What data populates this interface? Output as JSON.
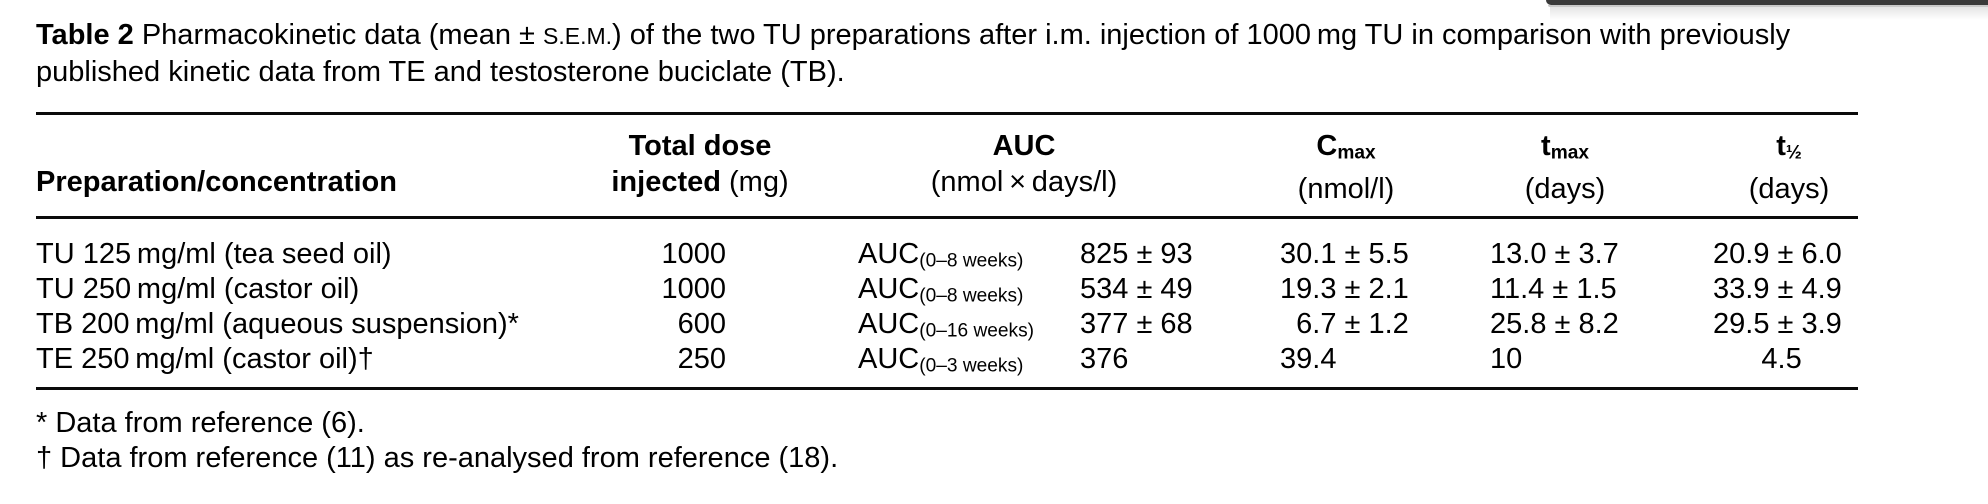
{
  "page": {
    "background": "#ffffff",
    "text_color": "#000000",
    "window_corner_color": "#3a3a3a"
  },
  "caption": {
    "label": "Table 2",
    "line1_a": " Pharmacokinetic data (mean ± ",
    "sem": "S.E.M.",
    "line1_b": ") of the two TU preparations after i.m. injection of 1000 mg TU in comparison with previously",
    "line2": "published kinetic data from TE and testosterone buciclate (TB)."
  },
  "table": {
    "headers": {
      "col1": "Preparation/concentration",
      "col2_line1": "Total dose",
      "col2_line2_bold": "injected",
      "col2_line2_unit": " (mg)",
      "col3_line1": "AUC",
      "col3_line2": "(nmol × days/l)",
      "col4_base": "C",
      "col4_sub": "max",
      "col4_unit": "(nmol/l)",
      "col5_base": "t",
      "col5_sub": "max",
      "col5_unit": "(days)",
      "col6_base": "t",
      "col6_sub": "½",
      "col6_unit": "(days)"
    },
    "rows": [
      {
        "prep": "TU 125 mg/ml (tea seed oil)",
        "dose": "1000",
        "auc_base": "AUC",
        "auc_sub": "(0–8 weeks)",
        "auc_value": "825 ± 93",
        "cmax": "30.1 ± 5.5",
        "tmax": "13.0 ± 3.7",
        "thalf": "20.9 ± 6.0"
      },
      {
        "prep": "TU 250 mg/ml (castor oil)",
        "dose": "1000",
        "auc_base": "AUC",
        "auc_sub": "(0–8 weeks)",
        "auc_value": "534 ± 49",
        "cmax": "19.3 ± 2.1",
        "tmax": "11.4 ± 1.5",
        "thalf": "33.9 ± 4.9"
      },
      {
        "prep": "TB 200 mg/ml (aqueous suspension)*",
        "dose": "600",
        "auc_base": "AUC",
        "auc_sub": "(0–16 weeks)",
        "auc_value": "377 ± 68",
        "cmax": " 6.7 ± 1.2",
        "tmax": "25.8 ± 8.2",
        "thalf": "29.5 ± 3.9"
      },
      {
        "prep": "TE 250 mg/ml (castor oil)†",
        "dose": "250",
        "auc_base": "AUC",
        "auc_sub": "(0–3 weeks)",
        "auc_value": "376",
        "cmax": "39.4",
        "tmax": "10",
        "thalf": "   4.5"
      }
    ],
    "footnotes": [
      "* Data from reference (6).",
      "† Data from reference (11) as re-analysed from reference (18)."
    ]
  }
}
